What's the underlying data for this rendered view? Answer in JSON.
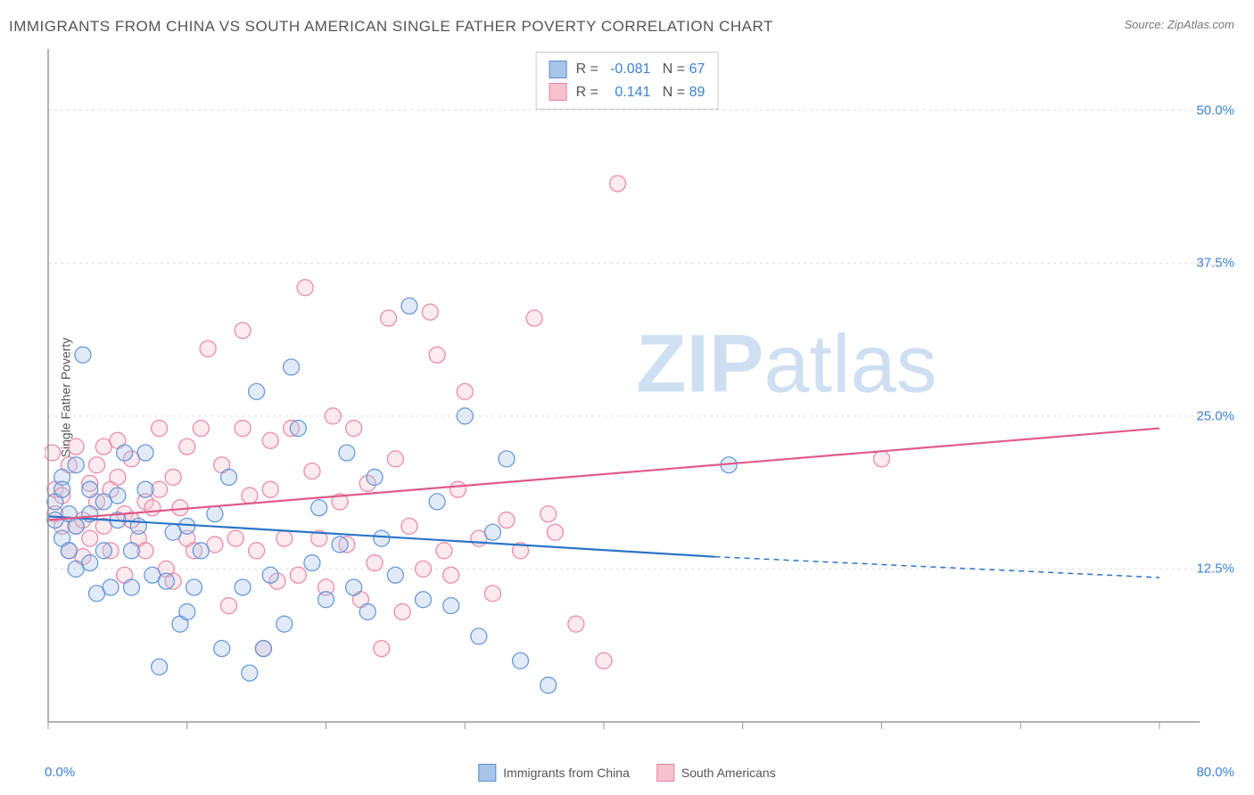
{
  "title": "IMMIGRANTS FROM CHINA VS SOUTH AMERICAN SINGLE FATHER POVERTY CORRELATION CHART",
  "source_prefix": "Source: ",
  "source_name": "ZipAtlas.com",
  "y_axis_label": "Single Father Poverty",
  "watermark_bold": "ZIP",
  "watermark_light": "atlas",
  "chart": {
    "type": "scatter",
    "xlim": [
      0,
      80
    ],
    "ylim": [
      0,
      55
    ],
    "y_ticks": [
      12.5,
      25.0,
      37.5,
      50.0
    ],
    "y_tick_labels": [
      "12.5%",
      "25.0%",
      "37.5%",
      "50.0%"
    ],
    "x_min_label": "0.0%",
    "x_max_label": "80.0%",
    "grid_color": "#dddddd",
    "axis_color": "#999999",
    "background_color": "#ffffff",
    "marker_radius": 9,
    "marker_fill_opacity": 0.35,
    "marker_stroke_width": 1.3,
    "trend_line_width": 2.2,
    "series": [
      {
        "name": "Immigrants from China",
        "color_fill": "#a8c5e8",
        "color_stroke": "#5b8fd6",
        "trend_color": "#2b74c9",
        "r": -0.081,
        "n": 67,
        "trend": {
          "x1": 0,
          "y1": 16.8,
          "x2": 48,
          "y2": 13.5,
          "dash_from_x": 48,
          "dash_to_x": 80,
          "dash_y2": 11.8
        },
        "points": [
          [
            0.5,
            16.5
          ],
          [
            0.5,
            18
          ],
          [
            1,
            15
          ],
          [
            1,
            20
          ],
          [
            1,
            19
          ],
          [
            1.5,
            17
          ],
          [
            1.5,
            14
          ],
          [
            2,
            21
          ],
          [
            2,
            16
          ],
          [
            2,
            12.5
          ],
          [
            2.5,
            30
          ],
          [
            3,
            19
          ],
          [
            3,
            17
          ],
          [
            3,
            13
          ],
          [
            3.5,
            10.5
          ],
          [
            4,
            14
          ],
          [
            4,
            18
          ],
          [
            4.5,
            11
          ],
          [
            5,
            18.5
          ],
          [
            5,
            16.5
          ],
          [
            5.5,
            22
          ],
          [
            6,
            14
          ],
          [
            6,
            11
          ],
          [
            6.5,
            16
          ],
          [
            7,
            19
          ],
          [
            7,
            22
          ],
          [
            7.5,
            12
          ],
          [
            8,
            4.5
          ],
          [
            8.5,
            11.5
          ],
          [
            9,
            15.5
          ],
          [
            9.5,
            8
          ],
          [
            10,
            9
          ],
          [
            10,
            16
          ],
          [
            10.5,
            11
          ],
          [
            11,
            14
          ],
          [
            12,
            17
          ],
          [
            12.5,
            6
          ],
          [
            13,
            20
          ],
          [
            14,
            11
          ],
          [
            14.5,
            4
          ],
          [
            15,
            27
          ],
          [
            15.5,
            6
          ],
          [
            16,
            12
          ],
          [
            17,
            8
          ],
          [
            17.5,
            29
          ],
          [
            18,
            24
          ],
          [
            19,
            13
          ],
          [
            19.5,
            17.5
          ],
          [
            20,
            10
          ],
          [
            21,
            14.5
          ],
          [
            21.5,
            22
          ],
          [
            22,
            11
          ],
          [
            23,
            9
          ],
          [
            23.5,
            20
          ],
          [
            24,
            15
          ],
          [
            25,
            12
          ],
          [
            26,
            34
          ],
          [
            27,
            10
          ],
          [
            28,
            18
          ],
          [
            29,
            9.5
          ],
          [
            30,
            25
          ],
          [
            31,
            7
          ],
          [
            32,
            15.5
          ],
          [
            33,
            21.5
          ],
          [
            34,
            5
          ],
          [
            36,
            3
          ],
          [
            49,
            21
          ]
        ]
      },
      {
        "name": "South Americans",
        "color_fill": "#f5c2ce",
        "color_stroke": "#e87fa0",
        "trend_color": "#e05a8a",
        "r": 0.141,
        "n": 89,
        "trend": {
          "x1": 0,
          "y1": 16.5,
          "x2": 80,
          "y2": 24.0
        },
        "points": [
          [
            0.3,
            22
          ],
          [
            0.5,
            17
          ],
          [
            0.5,
            19
          ],
          [
            1,
            18.5
          ],
          [
            1,
            16
          ],
          [
            1.5,
            21
          ],
          [
            1.5,
            14
          ],
          [
            2,
            16
          ],
          [
            2,
            22.5
          ],
          [
            2.5,
            16.5
          ],
          [
            2.5,
            13.5
          ],
          [
            3,
            15
          ],
          [
            3,
            19.5
          ],
          [
            3.5,
            18
          ],
          [
            3.5,
            21
          ],
          [
            4,
            22.5
          ],
          [
            4,
            16
          ],
          [
            4.5,
            14
          ],
          [
            4.5,
            19
          ],
          [
            5,
            20
          ],
          [
            5,
            23
          ],
          [
            5.5,
            12
          ],
          [
            5.5,
            17
          ],
          [
            6,
            21.5
          ],
          [
            6,
            16.5
          ],
          [
            6.5,
            15
          ],
          [
            7,
            18
          ],
          [
            7,
            14
          ],
          [
            7.5,
            17.5
          ],
          [
            8,
            19
          ],
          [
            8,
            24
          ],
          [
            8.5,
            12.5
          ],
          [
            9,
            20
          ],
          [
            9,
            11.5
          ],
          [
            9.5,
            17.5
          ],
          [
            10,
            22.5
          ],
          [
            10,
            15
          ],
          [
            10.5,
            14
          ],
          [
            11,
            24
          ],
          [
            11.5,
            30.5
          ],
          [
            12,
            14.5
          ],
          [
            12.5,
            21
          ],
          [
            13,
            9.5
          ],
          [
            13.5,
            15
          ],
          [
            14,
            24
          ],
          [
            14,
            32
          ],
          [
            14.5,
            18.5
          ],
          [
            15,
            14
          ],
          [
            15.5,
            6
          ],
          [
            16,
            23
          ],
          [
            16,
            19
          ],
          [
            16.5,
            11.5
          ],
          [
            17,
            15
          ],
          [
            17.5,
            24
          ],
          [
            18,
            12
          ],
          [
            18.5,
            35.5
          ],
          [
            19,
            20.5
          ],
          [
            19.5,
            15
          ],
          [
            20,
            11
          ],
          [
            20.5,
            25
          ],
          [
            21,
            18
          ],
          [
            21.5,
            14.5
          ],
          [
            22,
            24
          ],
          [
            22.5,
            10
          ],
          [
            23,
            19.5
          ],
          [
            23.5,
            13
          ],
          [
            24,
            6
          ],
          [
            24.5,
            33
          ],
          [
            25,
            21.5
          ],
          [
            25.5,
            9
          ],
          [
            26,
            16
          ],
          [
            27,
            12.5
          ],
          [
            27.5,
            33.5
          ],
          [
            28,
            30
          ],
          [
            28.5,
            14
          ],
          [
            29,
            12
          ],
          [
            29.5,
            19
          ],
          [
            30,
            27
          ],
          [
            31,
            15
          ],
          [
            32,
            10.5
          ],
          [
            33,
            16.5
          ],
          [
            34,
            14
          ],
          [
            35,
            33
          ],
          [
            36,
            17
          ],
          [
            36.5,
            15.5
          ],
          [
            38,
            8
          ],
          [
            40,
            5
          ],
          [
            41,
            44
          ],
          [
            60,
            21.5
          ]
        ]
      }
    ]
  },
  "top_legend": {
    "r_label": "R =",
    "n_label": "N ="
  },
  "bottom_legend": {
    "items": [
      "Immigrants from China",
      "South Americans"
    ]
  }
}
